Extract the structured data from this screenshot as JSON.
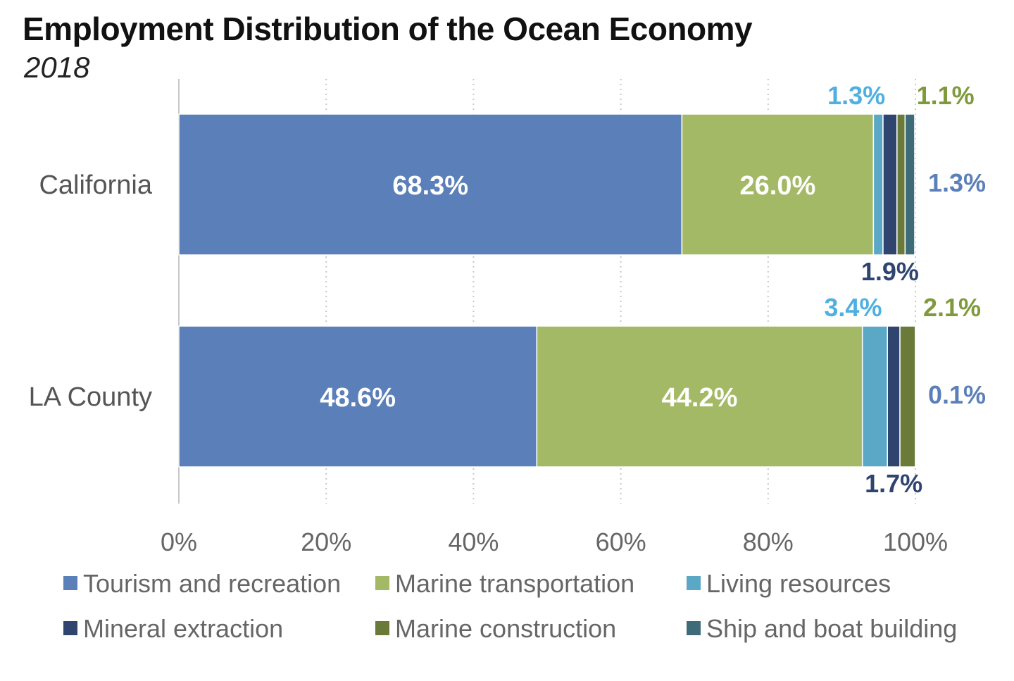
{
  "chart_data": {
    "type": "bar",
    "orientation": "horizontal",
    "stacked": true,
    "title": "Employment Distribution of the Ocean Economy",
    "subtitle": "2018",
    "categories": [
      "California",
      "LA County"
    ],
    "series": [
      {
        "name": "Tourism and recreation",
        "color": "#5b7fb8",
        "values": [
          68.3,
          48.6
        ]
      },
      {
        "name": "Marine transportation",
        "color": "#a3b965",
        "values": [
          26.0,
          44.2
        ]
      },
      {
        "name": "Living resources",
        "color": "#5ba8c6",
        "values": [
          1.3,
          3.4
        ]
      },
      {
        "name": "Mineral extraction",
        "color": "#2f4570",
        "values": [
          1.9,
          1.7
        ]
      },
      {
        "name": "Marine construction",
        "color": "#6a7a38",
        "values": [
          1.1,
          2.1
        ]
      },
      {
        "name": "Ship and boat building",
        "color": "#3e6b78",
        "values": [
          1.3,
          0.1
        ]
      }
    ],
    "data_labels": {
      "inside": [
        {
          "category": "California",
          "series": "Tourism and recreation",
          "text": "68.3%"
        },
        {
          "category": "California",
          "series": "Marine transportation",
          "text": "26.0%"
        },
        {
          "category": "LA County",
          "series": "Tourism and recreation",
          "text": "48.6%"
        },
        {
          "category": "LA County",
          "series": "Marine transportation",
          "text": "44.2%"
        }
      ],
      "outside": [
        {
          "category": "California",
          "series": "Living resources",
          "text": "1.3%",
          "color": "#4fb0e0",
          "place": "above-left"
        },
        {
          "category": "California",
          "series": "Marine construction",
          "text": "1.1%",
          "color": "#7f9a3c",
          "place": "above-right"
        },
        {
          "category": "California",
          "series": "Ship and boat building",
          "text": "1.3%",
          "color": "#5b7fb8",
          "place": "right"
        },
        {
          "category": "California",
          "series": "Mineral extraction",
          "text": "1.9%",
          "color": "#2f4570",
          "place": "below"
        },
        {
          "category": "LA County",
          "series": "Living resources",
          "text": "3.4%",
          "color": "#4fb0e0",
          "place": "above-left"
        },
        {
          "category": "LA County",
          "series": "Marine construction",
          "text": "2.1%",
          "color": "#7f9a3c",
          "place": "above-right"
        },
        {
          "category": "LA County",
          "series": "Ship and boat building",
          "text": "0.1%",
          "color": "#5b7fb8",
          "place": "right"
        },
        {
          "category": "LA County",
          "series": "Mineral extraction",
          "text": "1.7%",
          "color": "#2f4570",
          "place": "below"
        }
      ]
    },
    "xlim": [
      0,
      100
    ],
    "xticks": [
      "0%",
      "20%",
      "40%",
      "60%",
      "80%",
      "100%"
    ],
    "xlabel": "",
    "ylabel": "",
    "grid": "vertical dotted",
    "legend_position": "bottom"
  }
}
